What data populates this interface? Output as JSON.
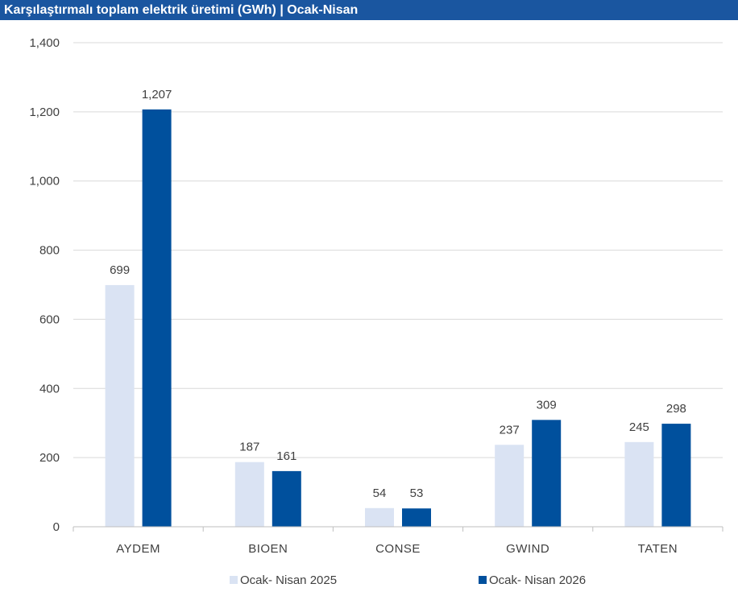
{
  "header": {
    "title": "Karşılaştırmalı toplam elektrik üretimi (GWh) | Ocak-Nisan",
    "background": "#1a56a0"
  },
  "chart_data": {
    "type": "bar",
    "title": "Karşılaştırmalı toplam elektrik üretimi (GWh) | Ocak-Nisan",
    "categories": [
      "AYDEM",
      "BIOEN",
      "CONSE",
      "GWIND",
      "TATEN"
    ],
    "series": [
      {
        "name": "Ocak- Nisan 2025",
        "values": [
          699,
          187,
          54,
          237,
          245
        ],
        "labels": [
          "699",
          "187",
          "54",
          "237",
          "245"
        ],
        "color": "#dae3f3"
      },
      {
        "name": "Ocak- Nisan 2026",
        "values": [
          1207,
          161,
          53,
          309,
          298
        ],
        "labels": [
          "1,207",
          "161",
          "53",
          "309",
          "298"
        ],
        "color": "#00509d"
      }
    ],
    "ylim": [
      0,
      1400
    ],
    "yticks": [
      0,
      200,
      400,
      600,
      800,
      1000,
      1200,
      1400
    ],
    "ytick_labels": [
      "0",
      "200",
      "400",
      "600",
      "800",
      "1,000",
      "1,200",
      "1,400"
    ],
    "grid": true,
    "legend": "bottom"
  }
}
